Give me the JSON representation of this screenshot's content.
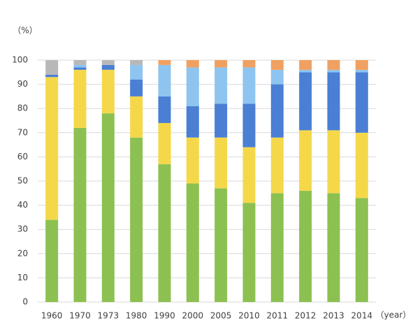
{
  "chart_data": {
    "type": "stacked_bar",
    "y_unit_label": "（%）",
    "x_unit_label": "（year）",
    "categories": [
      "1960",
      "1970",
      "1973",
      "1980",
      "1990",
      "2000",
      "2005",
      "2010",
      "2011",
      "2012",
      "2013",
      "2014"
    ],
    "series": [
      {
        "color": "#8cc152",
        "values": [
          34,
          72,
          78,
          68,
          57,
          49,
          47,
          41,
          45,
          46,
          45,
          43
        ]
      },
      {
        "color": "#f5d84a",
        "values": [
          59,
          24,
          18,
          17,
          17,
          19,
          21,
          23,
          23,
          25,
          26,
          27
        ]
      },
      {
        "color": "#4a7fd4",
        "values": [
          1,
          1,
          2,
          7,
          11,
          13,
          14,
          18,
          22,
          24,
          24,
          25
        ]
      },
      {
        "color": "#8ec4f0",
        "values": [
          0,
          1,
          0,
          6,
          13,
          16,
          15,
          15,
          6,
          1,
          1,
          1
        ]
      },
      {
        "color": "#f0a060",
        "values": [
          0,
          0,
          0,
          0,
          2,
          3,
          3,
          3,
          4,
          4,
          4,
          4
        ]
      },
      {
        "color": "#b8b8b8",
        "values": [
          6,
          2,
          2,
          2,
          0,
          0,
          0,
          0,
          0,
          0,
          0,
          0
        ]
      }
    ],
    "ylim": [
      0,
      100
    ],
    "yticks": [
      0,
      10,
      20,
      30,
      40,
      50,
      60,
      70,
      80,
      90,
      100
    ],
    "grid": true
  }
}
